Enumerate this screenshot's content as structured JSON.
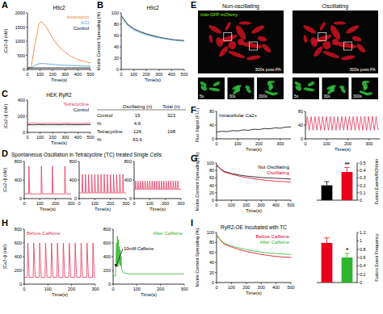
{
  "chart_data": [
    {
      "type": "line",
      "panel": "A",
      "title": "H9c2",
      "x_label": "Time(s)",
      "y_label": "[Ca2+]i (nM)",
      "x": [
        0,
        30,
        60,
        90,
        110,
        150,
        200,
        250,
        300,
        350,
        400,
        450,
        500
      ],
      "series": [
        {
          "name": "Ionomycin",
          "color": "#f07a2a",
          "values": [
            50,
            100,
            900,
            1600,
            1700,
            1500,
            1100,
            800,
            600,
            450,
            350,
            280,
            230
          ]
        },
        {
          "name": "KCl",
          "color": "#3aa0d8",
          "values": [
            50,
            60,
            150,
            200,
            210,
            200,
            180,
            160,
            150,
            140,
            130,
            120,
            115
          ]
        },
        {
          "name": "Control",
          "color": "#000000",
          "values": [
            50,
            52,
            55,
            55,
            55,
            55,
            55,
            55,
            55,
            55,
            55,
            55,
            55
          ]
        }
      ],
      "xlim": [
        0,
        500
      ],
      "xticks": [
        0,
        100,
        200,
        300,
        400,
        500
      ],
      "ylim": [
        0,
        2000
      ],
      "yticks": [
        0,
        500,
        1000,
        1500,
        2000
      ],
      "legend": "upper right"
    },
    {
      "type": "line",
      "panel": "B",
      "title": "H9c2",
      "x_label": "Time(s)",
      "y_label": "Matrix Content Spreading (%)",
      "x": [
        0,
        25,
        50,
        100,
        150,
        200,
        250,
        300,
        350,
        400,
        450,
        500
      ],
      "series": [
        {
          "color": "#000000",
          "values": [
            95,
            88,
            80,
            72,
            67,
            63,
            60,
            57,
            55,
            53,
            52,
            51
          ]
        },
        {
          "color": "#3aa0d8",
          "values": [
            93,
            86,
            78,
            70,
            65,
            61,
            58,
            56,
            54,
            52,
            51,
            50
          ]
        }
      ],
      "xlim": [
        0,
        500
      ],
      "xticks": [
        0,
        100,
        200,
        300,
        400,
        500
      ],
      "ylim": [
        0,
        100
      ],
      "yticks": [
        0,
        20,
        40,
        60,
        80,
        100
      ]
    },
    {
      "type": "line",
      "panel": "C",
      "title": "HEK RyR2",
      "x_label": "Time(s)",
      "y_label": "[Ca2+]i (nM)",
      "x": [
        0,
        50,
        100,
        150,
        200,
        250,
        300,
        350,
        400,
        450,
        500
      ],
      "series": [
        {
          "name": "Tetracycline",
          "color": "#e8365d",
          "values": [
            110,
            115,
            108,
            112,
            114,
            109,
            113,
            111,
            110,
            112,
            115
          ]
        },
        {
          "name": "Control",
          "color": "#000000",
          "values": [
            95,
            94,
            96,
            95,
            95,
            94,
            96,
            95,
            95,
            96,
            95
          ]
        }
      ],
      "xlim": [
        0,
        500
      ],
      "xticks": [
        0,
        100,
        200,
        300,
        400,
        500
      ],
      "ylim": [
        0,
        400
      ],
      "yticks": [
        0,
        200,
        400
      ],
      "legend": "upper right"
    },
    {
      "type": "table",
      "columns": [
        "Oscillating (n)",
        "Total (n)"
      ],
      "rows": [
        [
          "Control",
          15,
          323
        ],
        [
          "%",
          4.6
        ],
        [
          "Tetracycline",
          126,
          198
        ],
        [
          "%",
          63.6
        ]
      ]
    },
    {
      "type": "line",
      "panel": "D",
      "title": "Spontaneous Oscillation in Tetracycline (TC) treated Single Cells",
      "x_label": "Time(s)",
      "y_label": "[Ca2+]i (nM)",
      "x": [
        0,
        28,
        30,
        35,
        108,
        110,
        115,
        178,
        180,
        185,
        258,
        260,
        265,
        300
      ],
      "series": [
        {
          "color": "#e8365d",
          "values": [
            100,
            100,
            700,
            100,
            100,
            700,
            100,
            100,
            700,
            100,
            100,
            700,
            100,
            100
          ]
        }
      ],
      "xlim": [
        0,
        300
      ],
      "xticks": [
        0,
        100,
        200,
        300
      ],
      "ylim": [
        0,
        800
      ],
      "yticks": [
        0,
        400,
        800
      ]
    },
    {
      "type": "line",
      "x_label": "Time(s)",
      "x": [
        0,
        18,
        20,
        25,
        38,
        40,
        45,
        58,
        60,
        65,
        78,
        80,
        85,
        98,
        100,
        105,
        118,
        120,
        125,
        138,
        140,
        145,
        158,
        160,
        165,
        178,
        180,
        185,
        198,
        200,
        205,
        218,
        220,
        225,
        238,
        240,
        245,
        258,
        260,
        265,
        278,
        280,
        285,
        300
      ],
      "series": [
        {
          "color": "#e8365d",
          "values": [
            120,
            120,
            520,
            120,
            120,
            520,
            120,
            120,
            520,
            120,
            120,
            520,
            120,
            120,
            520,
            120,
            120,
            520,
            120,
            120,
            520,
            120,
            120,
            520,
            120,
            120,
            520,
            120,
            120,
            520,
            120,
            120,
            520,
            120,
            120,
            520,
            120,
            120,
            520,
            120,
            120,
            520,
            120,
            120
          ]
        }
      ],
      "xlim": [
        0,
        300
      ],
      "xticks": [
        0,
        100,
        200,
        300
      ],
      "ylim": [
        0,
        800
      ],
      "yticks": [
        0,
        400,
        800
      ]
    },
    {
      "type": "line",
      "x_label": "Time(s)",
      "x": [
        0,
        8,
        10,
        14,
        23,
        25,
        29,
        38,
        40,
        44,
        53,
        55,
        59,
        68,
        70,
        74,
        83,
        85,
        89,
        98,
        100,
        104,
        113,
        115,
        119,
        128,
        130,
        134,
        143,
        145,
        149,
        158,
        160,
        164,
        173,
        175,
        179,
        188,
        190,
        194,
        203,
        205,
        209,
        218,
        220,
        224,
        233,
        235,
        239,
        248,
        250,
        254,
        263,
        265,
        269,
        278,
        280,
        284,
        300
      ],
      "series": [
        {
          "color": "#e8365d",
          "values": [
            200,
            200,
            380,
            200,
            200,
            380,
            200,
            200,
            380,
            200,
            200,
            380,
            200,
            200,
            380,
            200,
            200,
            380,
            200,
            200,
            380,
            200,
            200,
            380,
            200,
            200,
            380,
            200,
            200,
            380,
            200,
            200,
            380,
            200,
            200,
            380,
            200,
            200,
            380,
            200,
            200,
            380,
            200,
            200,
            380,
            200,
            200,
            380,
            200,
            200,
            380,
            200,
            200,
            380,
            200,
            200,
            380,
            200,
            200
          ]
        }
      ],
      "xlim": [
        0,
        300
      ],
      "xticks": [
        0,
        100,
        200,
        300
      ],
      "ylim": [
        0,
        800
      ],
      "yticks": [
        0,
        400,
        800
      ]
    },
    {
      "type": "image",
      "panel": "E",
      "titles": [
        "Non-oscillating",
        "Oscillating"
      ],
      "stain": "mito-GFP mCherry",
      "captions": [
        "300s post-PA",
        "300s post-PA"
      ],
      "frames": [
        "5s",
        "30s",
        "300s"
      ]
    },
    {
      "type": "line",
      "panel": "F",
      "x_label": "Time(s)",
      "y_label": "Fluo Signal (F.U.)",
      "x": [
        0,
        25,
        50,
        75,
        100,
        125,
        150,
        175,
        200,
        225,
        250,
        275,
        300,
        325,
        350
      ],
      "series": [
        {
          "name": "Intracellular Ca2+",
          "color": "#000000",
          "values": [
            20,
            22,
            21,
            24,
            23,
            26,
            25,
            28,
            27,
            30,
            29,
            32,
            31,
            34,
            35
          ]
        }
      ],
      "xlim": [
        0,
        350
      ],
      "xticks": [
        0,
        100,
        200,
        300
      ],
      "ylim": [
        0,
        80
      ],
      "yticks": [
        0,
        40,
        80
      ],
      "legend": "upper left"
    },
    {
      "type": "line",
      "x_label": "Time(s)",
      "x": [
        0,
        9,
        18,
        27,
        36,
        45,
        54,
        63,
        72,
        81,
        90,
        99,
        108,
        117,
        126,
        135,
        144,
        153,
        162,
        171,
        180,
        189,
        198,
        207,
        216,
        225,
        234,
        243,
        252,
        261,
        270,
        279,
        288,
        297,
        306,
        315,
        324,
        333,
        342
      ],
      "series": [
        {
          "color": "#e8365d",
          "values": [
            25,
            65,
            25,
            65,
            25,
            65,
            25,
            65,
            25,
            65,
            25,
            65,
            25,
            65,
            25,
            65,
            25,
            65,
            25,
            65,
            25,
            65,
            25,
            65,
            25,
            65,
            25,
            65,
            25,
            65,
            25,
            65,
            25,
            65,
            25,
            65,
            25,
            65,
            25
          ]
        }
      ],
      "xlim": [
        0,
        350
      ],
      "xticks": [
        0,
        100,
        200,
        300
      ],
      "ylim": [
        0,
        80
      ],
      "yticks": [
        0,
        40,
        80
      ]
    },
    {
      "type": "line",
      "panel": "G",
      "x_label": "Time(s)",
      "y_label": "Matrix Content Spreading (%)",
      "x": [
        0,
        25,
        50,
        100,
        150,
        200,
        250,
        300,
        350,
        400,
        450,
        500
      ],
      "series": [
        {
          "name": "Not Oscillating",
          "color": "#000000",
          "values": [
            95,
            85,
            78,
            72,
            68,
            65,
            63,
            61,
            60,
            59,
            58,
            57
          ]
        },
        {
          "name": "Oscillating",
          "color": "#e8001c",
          "values": [
            95,
            84,
            76,
            70,
            65,
            61,
            58,
            55,
            53,
            51,
            50,
            49
          ]
        }
      ],
      "xlim": [
        0,
        500
      ],
      "xticks": [
        0,
        100,
        200,
        300,
        400,
        500
      ],
      "ylim": [
        0,
        100
      ],
      "yticks": [
        0,
        20,
        40,
        60,
        80,
        100
      ],
      "legend": "upper right"
    },
    {
      "type": "bar",
      "categories": [
        null,
        null
      ],
      "values": [
        0.2,
        0.38
      ],
      "errors": [
        0.05,
        0.06
      ],
      "colors": [
        "#000000",
        "#e8001c"
      ],
      "y_label": "Fusion Events/ROI/min",
      "ylim": [
        0,
        0.5
      ],
      "yticks": [
        0,
        0.1,
        0.2,
        0.3,
        0.4,
        0.5
      ],
      "annotation": "**"
    },
    {
      "type": "line",
      "panel": "H",
      "x_label": "Time(s)",
      "y_label": "[Ca2+]i (nM)",
      "x": [
        0,
        13,
        15,
        21,
        38,
        40,
        46,
        63,
        65,
        71,
        88,
        90,
        96,
        113,
        115,
        121,
        138,
        140,
        146,
        163,
        165,
        171,
        188,
        190,
        196,
        213,
        215,
        221,
        238,
        240,
        246,
        263,
        265,
        271,
        288,
        290,
        296,
        300
      ],
      "series": [
        {
          "name": "Before Caffeine",
          "color": "#e8365d",
          "values": [
            100,
            100,
            600,
            100,
            100,
            600,
            100,
            100,
            600,
            100,
            100,
            600,
            100,
            100,
            600,
            100,
            100,
            600,
            100,
            100,
            600,
            100,
            100,
            600,
            100,
            100,
            600,
            100,
            100,
            600,
            100,
            100,
            600,
            100,
            100,
            600,
            100,
            100
          ]
        }
      ],
      "xlim": [
        0,
        300
      ],
      "xticks": [
        0,
        100,
        200,
        300
      ],
      "ylim": [
        0,
        800
      ],
      "yticks": [
        0,
        200,
        400,
        600,
        800
      ],
      "legend": "upper left"
    },
    {
      "type": "line",
      "x_label": "Time(s)",
      "annotation": "10mM Caffeine",
      "x": [
        0,
        10,
        14,
        16,
        18,
        20,
        22,
        24,
        26,
        28,
        30,
        32,
        34,
        36,
        40,
        50,
        70,
        100,
        150,
        200,
        250,
        300
      ],
      "series": [
        {
          "name": "After Caffeine",
          "color": "#2db52d",
          "values": [
            120,
            120,
            600,
            300,
            700,
            250,
            650,
            300,
            550,
            280,
            500,
            260,
            400,
            220,
            180,
            160,
            150,
            150,
            150,
            150,
            150,
            150
          ]
        }
      ],
      "xlim": [
        0,
        300
      ],
      "xticks": [
        0,
        100,
        200,
        300
      ],
      "ylim": [
        0,
        800
      ],
      "yticks": [
        0,
        200,
        400,
        600,
        800
      ],
      "legend": "upper right"
    },
    {
      "type": "line",
      "panel": "I",
      "title": "RyR2-OE Incubated with TC",
      "x_label": "Time(s)",
      "y_label": "Matrix Content Spreading (%)",
      "x": [
        0,
        25,
        50,
        100,
        150,
        200,
        250,
        300,
        350,
        400,
        450,
        500
      ],
      "series": [
        {
          "name": "Before Caffeine",
          "color": "#e8001c",
          "values": [
            95,
            85,
            77,
            71,
            66,
            62,
            59,
            56,
            54,
            52,
            51,
            50
          ]
        },
        {
          "name": "After Caffeine",
          "color": "#2db52d",
          "values": [
            95,
            86,
            79,
            73,
            69,
            66,
            63,
            61,
            59,
            58,
            57,
            56
          ]
        }
      ],
      "xlim": [
        0,
        500
      ],
      "xticks": [
        0,
        100,
        200,
        300,
        400,
        500
      ],
      "ylim": [
        0,
        100
      ],
      "yticks": [
        0,
        20,
        40,
        60,
        80,
        100
      ],
      "legend": "upper right"
    },
    {
      "type": "bar",
      "categories": [
        null,
        null
      ],
      "values": [
        0.95,
        0.6
      ],
      "errors": [
        0.12,
        0.1
      ],
      "colors": [
        "#e8001c",
        "#2db52d"
      ],
      "y_label": "Fusion Event Frequency",
      "ylim": [
        0,
        1.2
      ],
      "yticks": [
        0,
        0.2,
        0.4,
        0.6,
        0.8,
        1,
        1.2
      ],
      "annotation": "*"
    }
  ]
}
